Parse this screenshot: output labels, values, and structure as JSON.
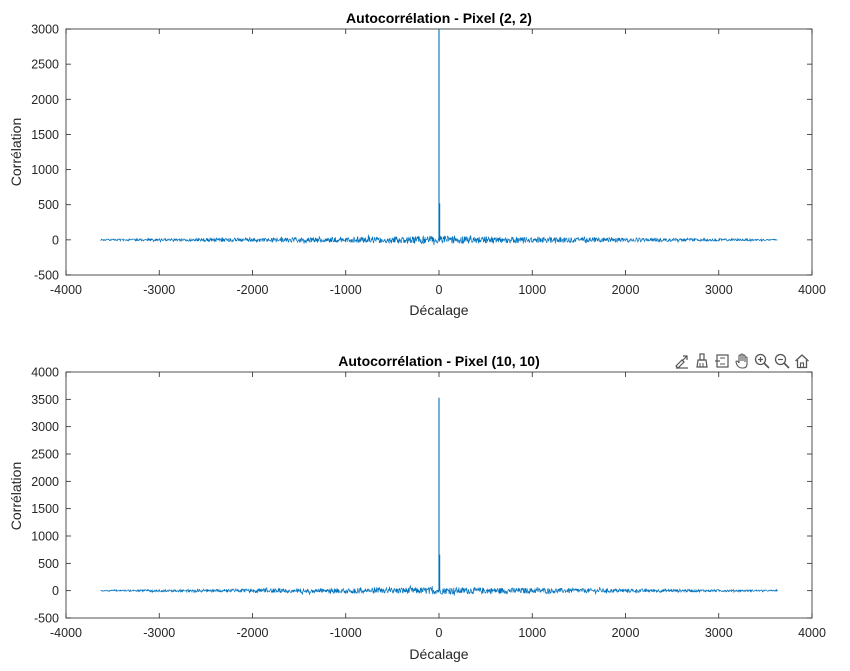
{
  "toolbar": {
    "icons": [
      "brush-export-icon",
      "data-brush-icon",
      "datatip-icon",
      "pan-hand-icon",
      "zoom-in-icon",
      "zoom-out-icon",
      "home-restore-icon"
    ]
  },
  "colors": {
    "line": "#0072BD",
    "axes": "#262626",
    "background": "#ffffff"
  },
  "chart_data": [
    {
      "type": "line",
      "title": "Autocorrélation - Pixel (2, 2)",
      "xlabel": "Décalage",
      "ylabel": "Corrélation",
      "xlim": [
        -4000,
        4000
      ],
      "ylim": [
        -500,
        3000
      ],
      "xticks": [
        -4000,
        -3000,
        -2000,
        -1000,
        0,
        1000,
        2000,
        3000,
        4000
      ],
      "yticks": [
        -500,
        0,
        500,
        1000,
        1500,
        2000,
        2500,
        3000
      ],
      "grid": false,
      "series": [
        {
          "x_range": [
            -3630,
            3630
          ],
          "noise_amplitude": 55,
          "peak": {
            "x": 0,
            "y": 3000
          },
          "secondary_peak": 520
        }
      ]
    },
    {
      "type": "line",
      "title": "Autocorrélation - Pixel (10, 10)",
      "xlabel": "Décalage",
      "ylabel": "Corrélation",
      "xlim": [
        -4000,
        4000
      ],
      "ylim": [
        -500,
        4000
      ],
      "xticks": [
        -4000,
        -3000,
        -2000,
        -1000,
        0,
        1000,
        2000,
        3000,
        4000
      ],
      "yticks": [
        -500,
        0,
        500,
        1000,
        1500,
        2000,
        2500,
        3000,
        3500,
        4000
      ],
      "grid": false,
      "series": [
        {
          "x_range": [
            -3630,
            3630
          ],
          "noise_amplitude": 65,
          "peak": {
            "x": 0,
            "y": 3530
          },
          "secondary_peak": 660
        }
      ]
    }
  ]
}
